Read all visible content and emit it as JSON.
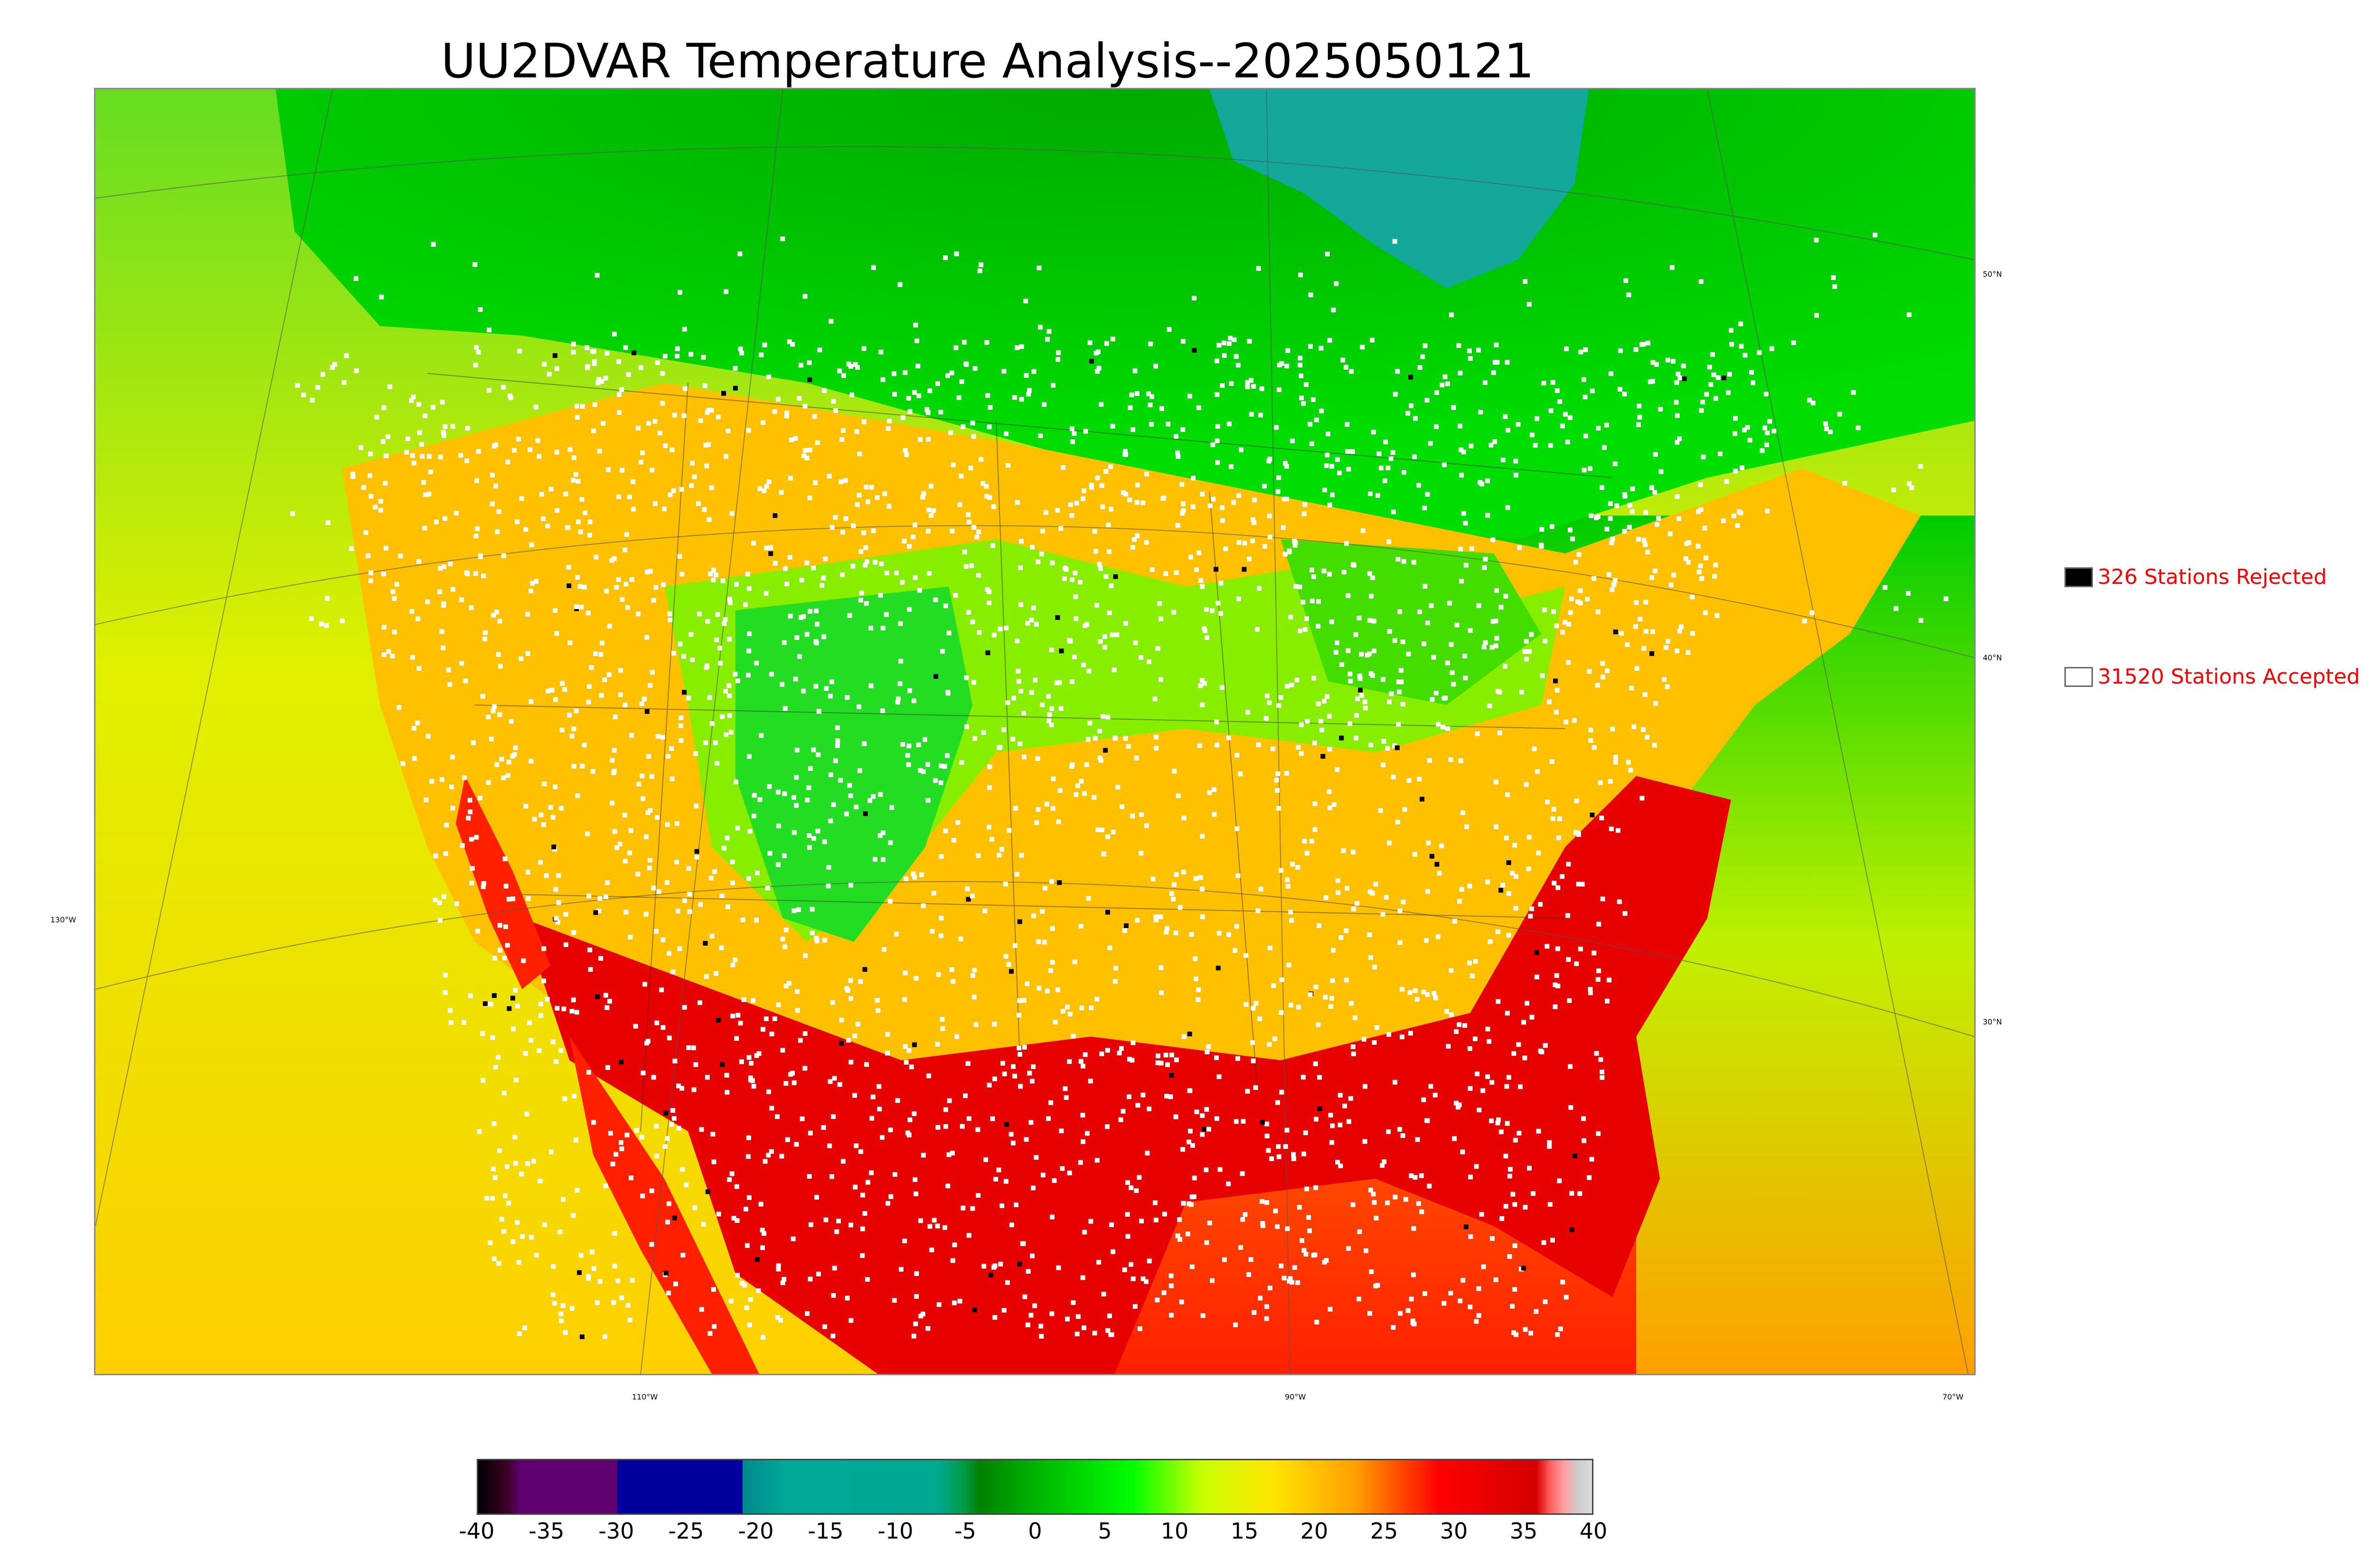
{
  "title": "UU2DVAR Temperature Analysis--2025050121",
  "map": {
    "lat_labels": [
      {
        "text": "50°N",
        "lat": 50
      },
      {
        "text": "40°N",
        "lat": 40
      },
      {
        "text": "30°N",
        "lat": 30
      }
    ],
    "lon_labels": [
      {
        "text": "130°W",
        "lon": -130
      },
      {
        "text": "110°W",
        "lon": -110
      },
      {
        "text": "90°W",
        "lon": -90
      },
      {
        "text": "70°W",
        "lon": -70
      }
    ]
  },
  "legend": {
    "rejected": {
      "label": "326 Stations Rejected",
      "count": 326,
      "color": "#000000"
    },
    "accepted": {
      "label": "31520 Stations Accepted",
      "count": 31520,
      "color": "#ffffff"
    }
  },
  "colorbar": {
    "min": -40,
    "max": 40,
    "ticks": [
      "-40",
      "-35",
      "-30",
      "-25",
      "-20",
      "-15",
      "-10",
      "-5",
      "0",
      "5",
      "10",
      "15",
      "20",
      "25",
      "30",
      "35",
      "40"
    ],
    "stops": [
      {
        "value": -40,
        "color": "#000000"
      },
      {
        "value": -38,
        "color": "#3a0020"
      },
      {
        "value": -37,
        "color": "#5e006e"
      },
      {
        "value": -30,
        "color": "#5e006e"
      },
      {
        "value": -30,
        "color": "#00009c"
      },
      {
        "value": -21,
        "color": "#00009c"
      },
      {
        "value": -21,
        "color": "#008a8a"
      },
      {
        "value": -18,
        "color": "#00a898"
      },
      {
        "value": -7,
        "color": "#00a890"
      },
      {
        "value": -5,
        "color": "#009a40"
      },
      {
        "value": -4,
        "color": "#008000"
      },
      {
        "value": 0,
        "color": "#00b400"
      },
      {
        "value": 7,
        "color": "#00ff00"
      },
      {
        "value": 12,
        "color": "#c8ff00"
      },
      {
        "value": 17,
        "color": "#ffe600"
      },
      {
        "value": 23,
        "color": "#ffa000"
      },
      {
        "value": 26,
        "color": "#ff5000"
      },
      {
        "value": 29,
        "color": "#ff0000"
      },
      {
        "value": 36,
        "color": "#d40000"
      },
      {
        "value": 37,
        "color": "#ff6060"
      },
      {
        "value": 38,
        "color": "#ffa0a0"
      },
      {
        "value": 39,
        "color": "#cccccc"
      },
      {
        "value": 40,
        "color": "#dddddd"
      }
    ]
  }
}
